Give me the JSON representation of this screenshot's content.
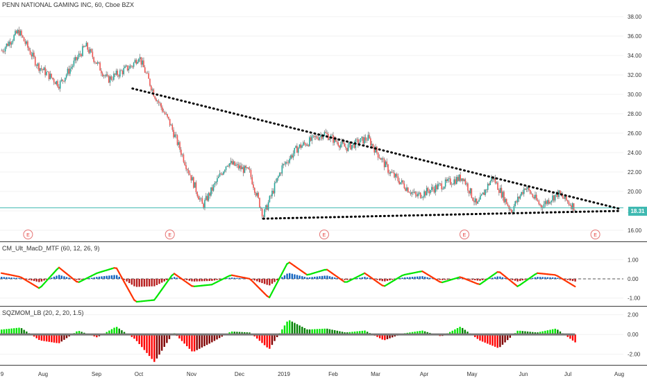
{
  "chart_data": [
    {
      "type": "line",
      "style": "candlestick",
      "title": "PENN NATIONAL GAMING INC, 60, Cboe BZX",
      "ylim": [
        15,
        39
      ],
      "yticks": [
        "38.00",
        "36.00",
        "34.00",
        "32.00",
        "30.00",
        "28.00",
        "26.00",
        "24.00",
        "22.00",
        "20.00",
        "18.00",
        "16.00"
      ],
      "last_price_label": "18.31",
      "last_price": 18.31,
      "earnings_marker": "E",
      "earnings_dates": [
        "2018-07-26",
        "2018-10-25",
        "2019-02-01",
        "2019-05-02",
        "2019-07-25"
      ],
      "x": [
        "2018-07-09",
        "2018-07-20",
        "2018-08-01",
        "2018-08-15",
        "2018-09-01",
        "2018-09-15",
        "2018-10-01",
        "2018-10-05",
        "2018-10-15",
        "2018-10-25",
        "2018-11-05",
        "2018-11-15",
        "2018-12-01",
        "2018-12-15",
        "2018-12-24",
        "2019-01-05",
        "2019-01-15",
        "2019-02-01",
        "2019-02-15",
        "2019-03-01",
        "2019-03-15",
        "2019-04-01",
        "2019-04-15",
        "2019-05-01",
        "2019-05-10",
        "2019-05-20",
        "2019-06-01",
        "2019-06-10",
        "2019-06-20",
        "2019-07-01",
        "2019-07-12"
      ],
      "y": [
        34.5,
        36.5,
        33.0,
        31.0,
        35.0,
        31.5,
        33.0,
        34.0,
        30.0,
        27.0,
        22.5,
        18.5,
        23.0,
        22.0,
        17.5,
        22.5,
        24.5,
        26.0,
        24.5,
        25.5,
        22.0,
        19.5,
        20.5,
        21.5,
        18.5,
        21.5,
        18.0,
        20.5,
        18.5,
        19.8,
        18.31
      ],
      "trendlines": [
        {
          "from": [
            "2018-10-01",
            30.6
          ],
          "to": [
            "2019-08-10",
            18.2
          ],
          "style": "dotted"
        },
        {
          "from": [
            "2018-12-24",
            17.2
          ],
          "to": [
            "2019-08-10",
            18.0
          ],
          "style": "dotted"
        }
      ],
      "colors": {
        "up": "#26a69a",
        "down": "#ef5350",
        "wick": "#555555",
        "trendline": "#000000",
        "price_line": "#3fb9b1"
      }
    },
    {
      "type": "line",
      "title": "CM_Ult_MacD_MTF (60, 12, 26, 9)",
      "ylim": [
        -1.3,
        1.3
      ],
      "yticks": [
        "1.00",
        "0.00",
        "-1.00"
      ],
      "series": [
        {
          "values": [
            0.3,
            0.1,
            -0.5,
            0.6,
            -0.2,
            0.3,
            0.6,
            -1.2,
            -1.1,
            0.3,
            -0.4,
            -0.3,
            0.2,
            0.0,
            -1.0,
            0.9,
            0.2,
            0.5,
            -0.2,
            0.3,
            -0.4,
            0.2,
            0.4,
            -0.2,
            0.1,
            -0.3,
            0.4,
            -0.4,
            0.3,
            0.2,
            -0.4
          ]
        }
      ],
      "colors": {
        "rising": "#00e600",
        "falling": "#ff3300",
        "hist_up": "#1565c0",
        "hist_down": "#b71c1c"
      }
    },
    {
      "type": "bar",
      "title": "SQZMOM_LB (20, 2, 20, 1.5)",
      "ylim": [
        -2.8,
        2.4
      ],
      "yticks": [
        "2.00",
        "0.00",
        "-2.00"
      ],
      "values": [
        0.5,
        0.7,
        -0.6,
        -0.9,
        0.4,
        -0.3,
        0.8,
        -0.5,
        -2.8,
        0.2,
        -1.8,
        -0.8,
        0.3,
        0.2,
        -1.5,
        1.5,
        0.5,
        0.6,
        0.2,
        0.4,
        -0.6,
        0.1,
        0.4,
        -0.2,
        0.8,
        -0.6,
        -1.4,
        0.4,
        0.2,
        0.6,
        -0.8
      ],
      "colors": {
        "pos_strong": "#00e600",
        "pos_weak": "#008000",
        "neg_strong": "#ff0000",
        "neg_weak": "#800000",
        "zero_line": "#777777"
      }
    }
  ],
  "xaxis": {
    "labels": [
      "9",
      "Aug",
      "Sep",
      "Oct",
      "Nov",
      "Dec",
      "2019",
      "Feb",
      "Mar",
      "Apr",
      "May",
      "Jun",
      "Jul",
      "Aug"
    ]
  }
}
